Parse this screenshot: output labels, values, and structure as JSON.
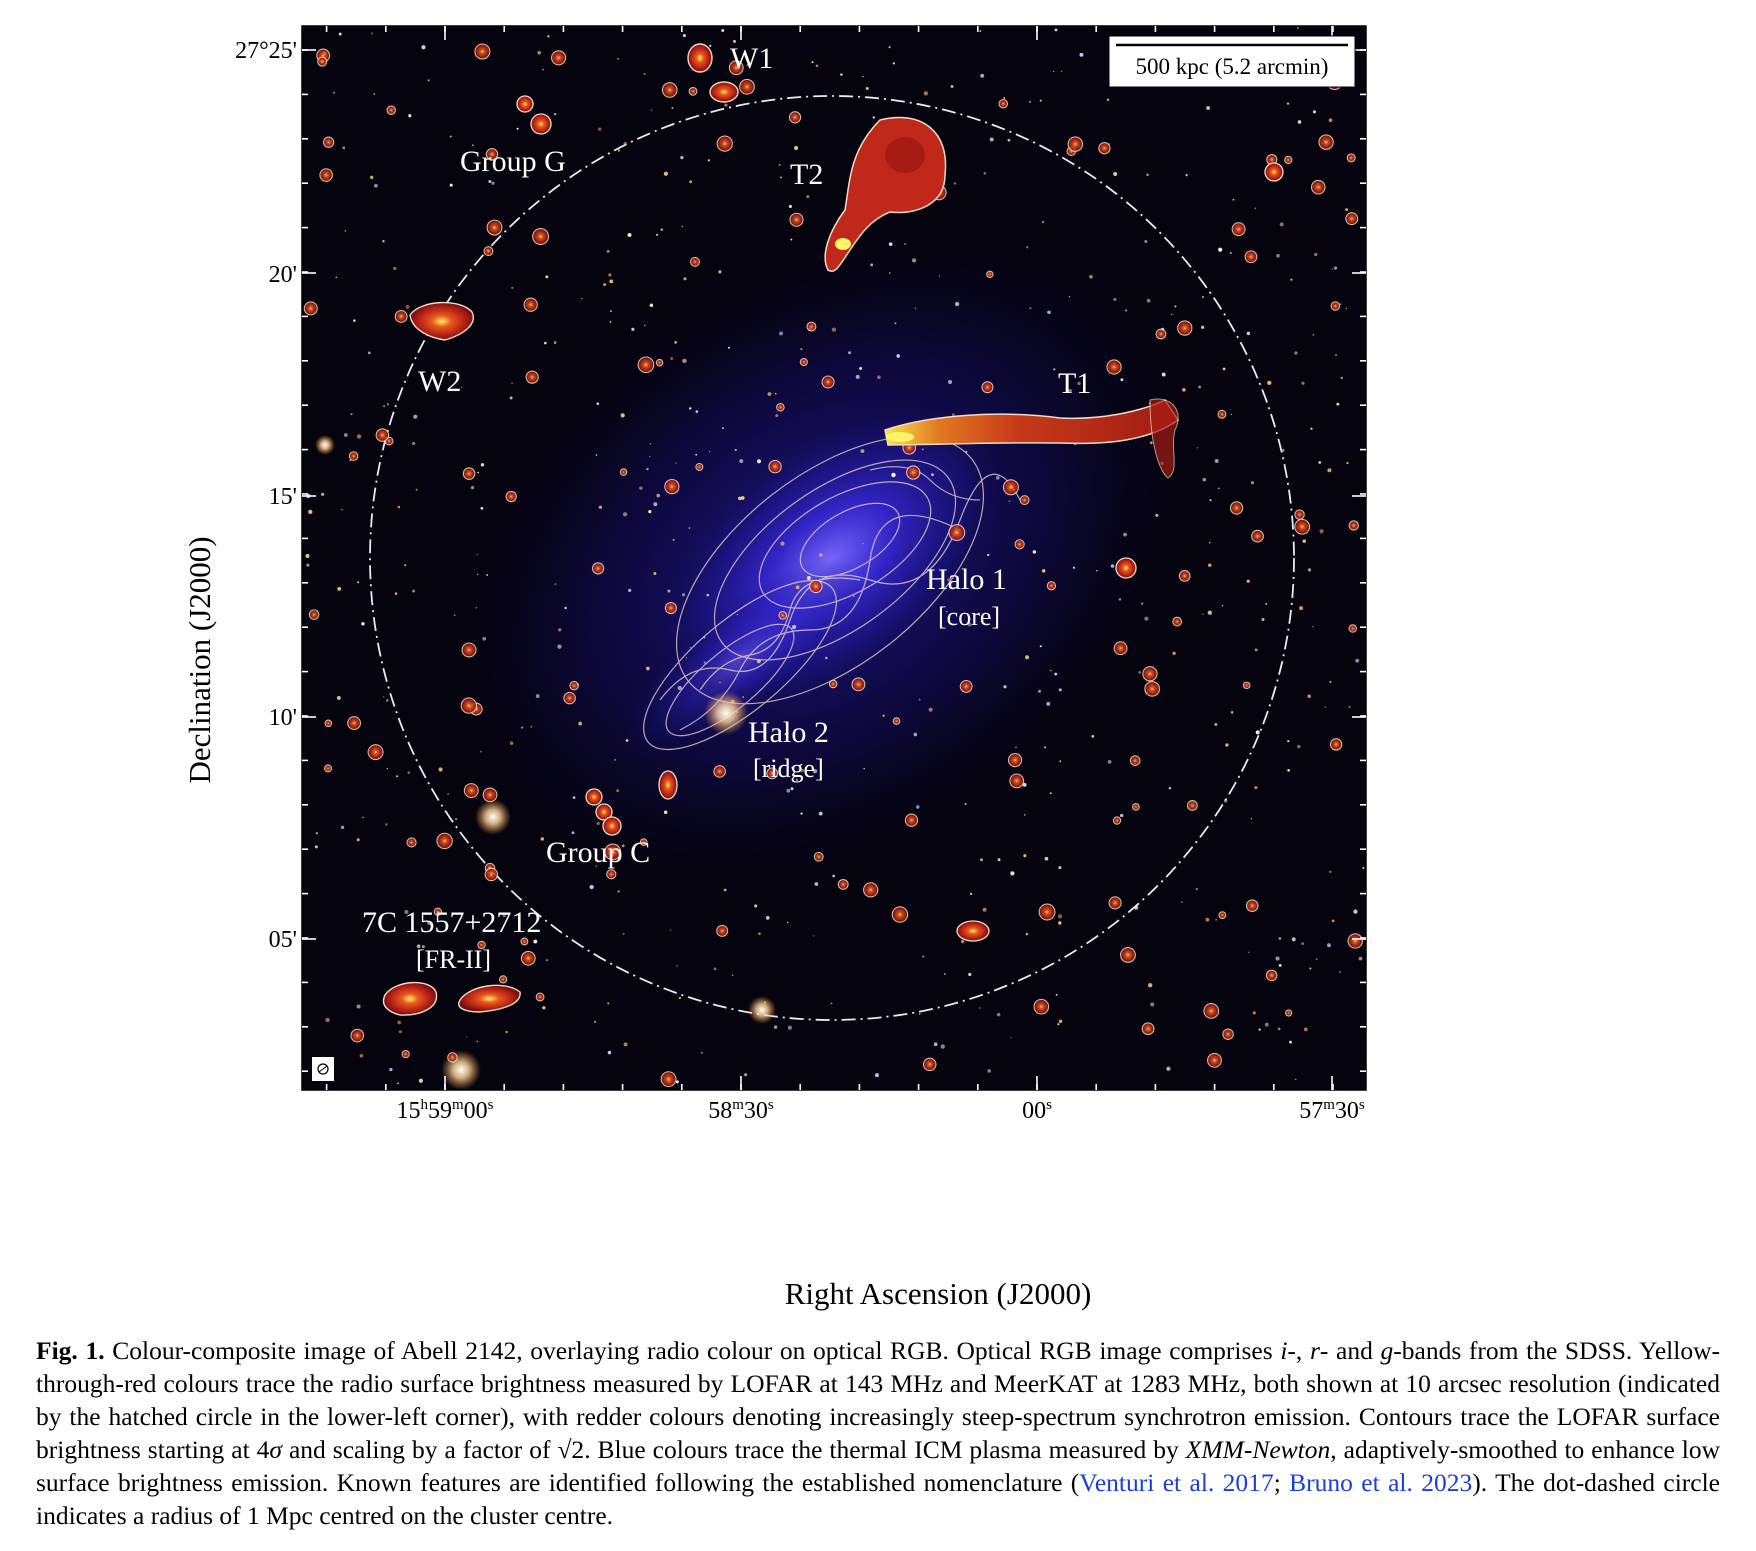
{
  "figure": {
    "scale_bar": "500 kpc (5.2 arcmin)",
    "y_ticks": [
      "27°25'",
      "20'",
      "15'",
      "10'",
      "05'"
    ],
    "x_ticks": [
      {
        "h": "15",
        "hu": "h",
        "m": "59",
        "mu": "m",
        "s": "00",
        "su": "s"
      },
      {
        "h": "",
        "hu": "",
        "m": "58",
        "mu": "m",
        "s": "30",
        "su": "s"
      },
      {
        "h": "",
        "hu": "",
        "m": "",
        "mu": "",
        "s": "00",
        "su": "s"
      },
      {
        "h": "",
        "hu": "",
        "m": "57",
        "mu": "m",
        "s": "30",
        "su": "s"
      }
    ],
    "xlabel": "Right Ascension (J2000)",
    "ylabel": "Declination (J2000)",
    "annotations": {
      "w1": "W1",
      "t2": "T2",
      "group_g": "Group G",
      "w2": "W2",
      "t1": "T1",
      "halo1": "Halo 1",
      "halo1_sub": "[core]",
      "halo2": "Halo 2",
      "halo2_sub": "[ridge]",
      "group_c": "Group C",
      "fr2": "7C 1557+2712",
      "fr2_sub": "[FR-II]"
    },
    "colors": {
      "background": "#05030e",
      "icm_blue": "#2b1fd0",
      "radio_red": "#c0281a",
      "radio_yellow": "#f4e23a",
      "contour": "#f1dcc8"
    }
  },
  "caption": {
    "label": "Fig. 1.",
    "p1": " Colour-composite image of Abell 2142, overlaying radio colour on optical RGB. Optical RGB image comprises ",
    "i_band": "i",
    "p2": "-, ",
    "r_band": "r",
    "p3": "- and ",
    "g_band": "g",
    "p4": "-bands from the SDSS. Yellow-through-red colours trace the radio surface brightness measured by LOFAR at 143 MHz and MeerKAT at 1283 MHz, both shown at 10 arcsec resolution (indicated by the hatched circle in the lower-left corner), with redder colours denoting increasingly steep-spectrum synchrotron emission. Contours trace the LOFAR surface brightness starting at 4",
    "sigma": "σ",
    "p5": " and scaling by a factor of ",
    "sqrt2": "√2",
    "p6": ". Blue colours trace the thermal ICM plasma measured by ",
    "xmm": "XMM-Newton",
    "p7": ", adaptively-smoothed to enhance low surface brightness emission. Known features are identified following the established nomenclature (",
    "ref1": "Venturi et al. 2017",
    "p8": "; ",
    "ref2": "Bruno et al. 2023",
    "p9": "). The dot-dashed circle indicates a radius of 1 Mpc centred on the cluster centre."
  }
}
